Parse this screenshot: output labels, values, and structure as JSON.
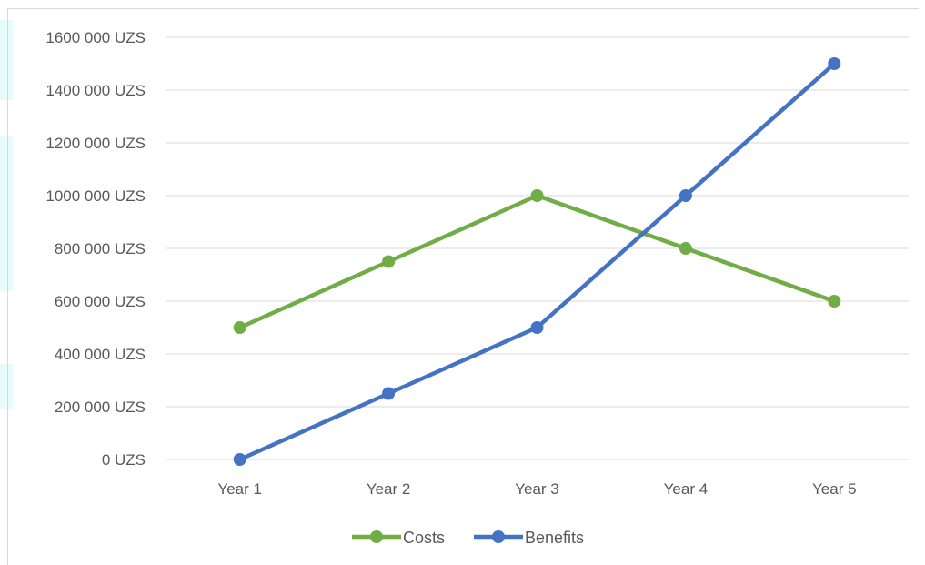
{
  "chart_data": {
    "type": "line",
    "categories": [
      "Year 1",
      "Year 2",
      "Year 3",
      "Year 4",
      "Year 5"
    ],
    "series": [
      {
        "name": "Costs",
        "color": "#70ad47",
        "values": [
          500000,
          750000,
          1000000,
          800000,
          600000
        ]
      },
      {
        "name": "Benefits",
        "color": "#4472c4",
        "values": [
          0,
          250000,
          500000,
          1000000,
          1500000
        ]
      }
    ],
    "y_ticks": [
      0,
      200000,
      400000,
      600000,
      800000,
      1000000,
      1200000,
      1400000,
      1600000
    ],
    "y_tick_labels": [
      "0 UZS",
      "200 000 UZS",
      "400 000 UZS",
      "600 000 UZS",
      "800 000 UZS",
      "1000 000 UZS",
      "1200 000 UZS",
      "1400 000 UZS",
      "1600 000 UZS"
    ],
    "ylim": [
      0,
      1600000
    ],
    "grid": true,
    "legend_position": "bottom",
    "gridline_color": "#d9d9d9",
    "label_color": "#595959"
  }
}
